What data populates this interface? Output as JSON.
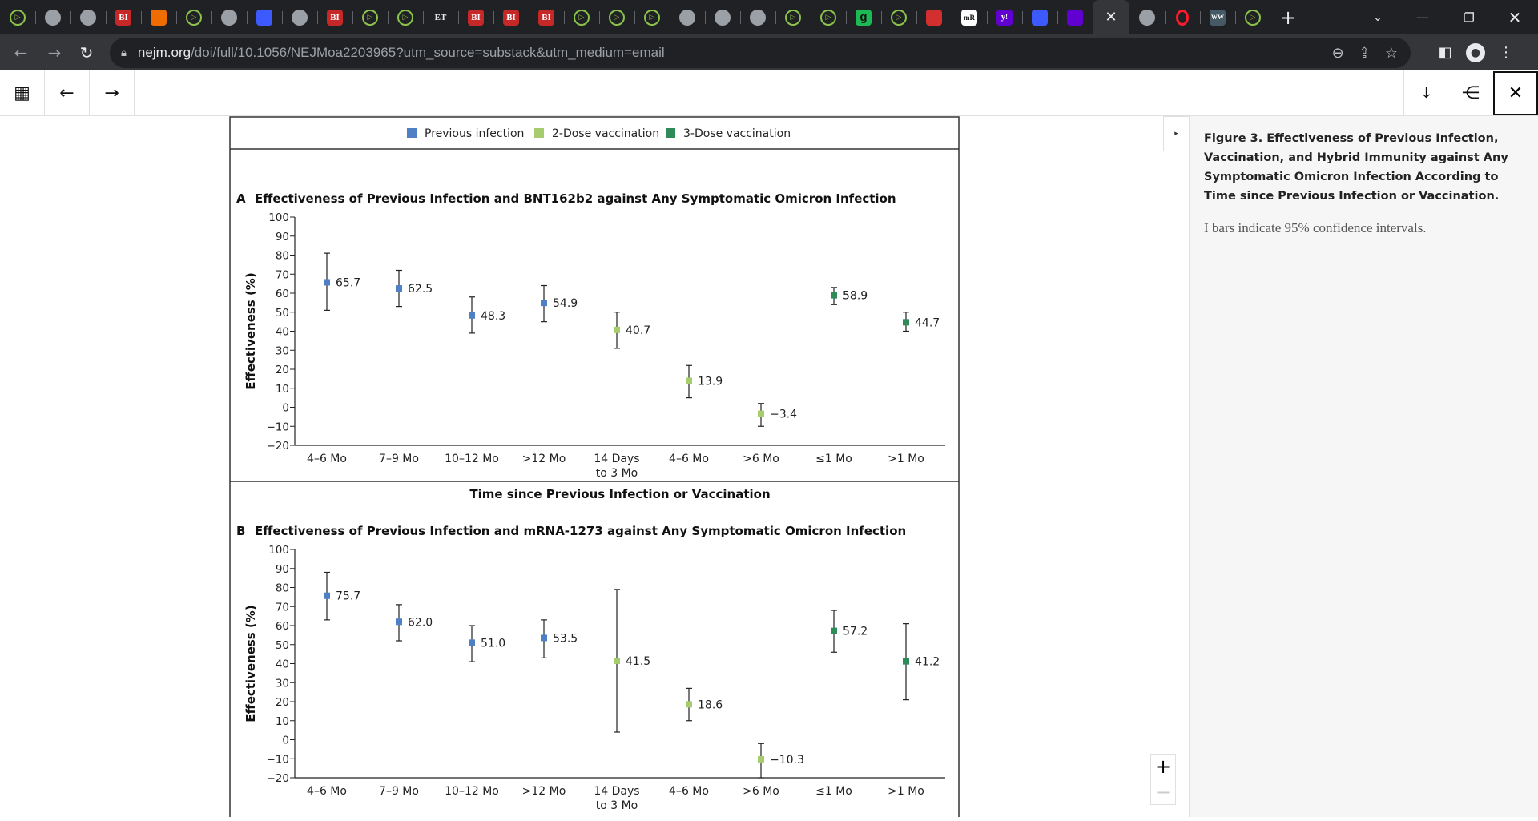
{
  "browser": {
    "tabs": [
      {
        "icon": "play-icon",
        "glyph": "▷",
        "kind": "play"
      },
      {
        "icon": "globe-icon",
        "glyph": "",
        "kind": "globe"
      },
      {
        "icon": "globe-icon",
        "glyph": "",
        "kind": "globe"
      },
      {
        "icon": "bi-icon",
        "glyph": "BI",
        "kind": "bi"
      },
      {
        "icon": "bookmark-icon",
        "glyph": "",
        "kind": "book"
      },
      {
        "icon": "play-icon",
        "glyph": "▷",
        "kind": "play"
      },
      {
        "icon": "globe-icon",
        "glyph": "",
        "kind": "globe"
      },
      {
        "icon": "blue-arrow-icon",
        "glyph": "",
        "kind": "blue"
      },
      {
        "icon": "globe-icon",
        "glyph": "",
        "kind": "globe"
      },
      {
        "icon": "bi-icon",
        "glyph": "BI",
        "kind": "bi"
      },
      {
        "icon": "play-icon",
        "glyph": "▷",
        "kind": "play"
      },
      {
        "icon": "play-icon",
        "glyph": "▷",
        "kind": "play"
      },
      {
        "icon": "et-icon",
        "glyph": "ET",
        "kind": "et"
      },
      {
        "icon": "bi-icon",
        "glyph": "BI",
        "kind": "bi"
      },
      {
        "icon": "bi-icon",
        "glyph": "BI",
        "kind": "bi"
      },
      {
        "icon": "bi-icon",
        "glyph": "BI",
        "kind": "bi"
      },
      {
        "icon": "play-icon",
        "glyph": "▷",
        "kind": "play"
      },
      {
        "icon": "play-icon",
        "glyph": "▷",
        "kind": "play"
      },
      {
        "icon": "play-icon",
        "glyph": "▷",
        "kind": "play"
      },
      {
        "icon": "globe-icon",
        "glyph": "",
        "kind": "globe"
      },
      {
        "icon": "globe-icon",
        "glyph": "",
        "kind": "globe"
      },
      {
        "icon": "globe-icon",
        "glyph": "",
        "kind": "globe"
      },
      {
        "icon": "play-icon",
        "glyph": "▷",
        "kind": "play"
      },
      {
        "icon": "play-icon",
        "glyph": "▷",
        "kind": "play"
      },
      {
        "icon": "g-icon",
        "glyph": "g",
        "kind": "g"
      },
      {
        "icon": "play-icon",
        "glyph": "▷",
        "kind": "play"
      },
      {
        "icon": "red-download-icon",
        "glyph": "",
        "kind": "red"
      },
      {
        "icon": "mr-icon",
        "glyph": "mR",
        "kind": "mr"
      },
      {
        "icon": "yahoo-icon",
        "glyph": "y!",
        "kind": "yahoo"
      },
      {
        "icon": "blue-arrow-icon",
        "glyph": "",
        "kind": "blue"
      },
      {
        "icon": "yahoo-mail-icon",
        "glyph": "",
        "kind": "yahoo"
      }
    ],
    "active_tab_close": "✕",
    "tabs_after": [
      {
        "icon": "globe-icon",
        "glyph": "",
        "kind": "globe"
      },
      {
        "icon": "opera-icon",
        "glyph": "",
        "kind": "opera"
      },
      {
        "icon": "ww-icon",
        "glyph": "WW",
        "kind": "ww"
      },
      {
        "icon": "play-icon",
        "glyph": "▷",
        "kind": "play"
      }
    ],
    "url_host": "nejm.org",
    "url_path": "/doi/full/10.1056/NEJMoa2203965?utm_source=substack&utm_medium=email"
  },
  "figure": {
    "legend": [
      {
        "label": "Previous infection",
        "color": "#4f7fc4"
      },
      {
        "label": "2-Dose vaccination",
        "color": "#a6cc6e"
      },
      {
        "label": "3-Dose vaccination",
        "color": "#2e8b57"
      }
    ],
    "panel_a_title": "Effectiveness of Previous Infection and BNT162b2 against Any Symptomatic Omicron Infection",
    "panel_a_letter": "A",
    "panel_b_title": "Effectiveness of Previous Infection and mRNA-1273 against Any Symptomatic Omicron Infection",
    "panel_b_letter": "B",
    "ylabel": "Effectiveness (%)",
    "xlabel": "Time since Previous Infection or Vaccination"
  },
  "chart_data": [
    {
      "type": "scatter",
      "title": "Effectiveness of Previous Infection and BNT162b2 against Any Symptomatic Omicron Infection",
      "ylabel": "Effectiveness (%)",
      "xlabel": "Time since Previous Infection or Vaccination",
      "ylim": [
        -20,
        100
      ],
      "yticks": [
        "100",
        "90",
        "80",
        "70",
        "60",
        "50",
        "40",
        "30",
        "20",
        "10",
        "0",
        "−10",
        "−20"
      ],
      "categories": [
        "4–6 Mo",
        "7–9 Mo",
        "10–12 Mo",
        ">12 Mo",
        "14 Days\nto 3 Mo",
        "4–6 Mo",
        ">6 Mo",
        "≤1 Mo",
        ">1 Mo"
      ],
      "points": [
        {
          "value": 65.7,
          "label": "65.7",
          "lo": 51,
          "hi": 81,
          "group": 0
        },
        {
          "value": 62.5,
          "label": "62.5",
          "lo": 53,
          "hi": 72,
          "group": 0
        },
        {
          "value": 48.3,
          "label": "48.3",
          "lo": 39,
          "hi": 58,
          "group": 0
        },
        {
          "value": 54.9,
          "label": "54.9",
          "lo": 45,
          "hi": 64,
          "group": 0
        },
        {
          "value": 40.7,
          "label": "40.7",
          "lo": 31,
          "hi": 50,
          "group": 1
        },
        {
          "value": 13.9,
          "label": "13.9",
          "lo": 5,
          "hi": 22,
          "group": 1
        },
        {
          "value": -3.4,
          "label": "−3.4",
          "lo": -10,
          "hi": 2,
          "group": 1
        },
        {
          "value": 58.9,
          "label": "58.9",
          "lo": 54,
          "hi": 63,
          "group": 2
        },
        {
          "value": 44.7,
          "label": "44.7",
          "lo": 40,
          "hi": 50,
          "group": 2
        }
      ]
    },
    {
      "type": "scatter",
      "title": "Effectiveness of Previous Infection and mRNA-1273 against Any Symptomatic Omicron Infection",
      "ylabel": "Effectiveness (%)",
      "xlabel": "Time since Previous Infection or Vaccination",
      "ylim": [
        -20,
        100
      ],
      "yticks": [
        "100",
        "90",
        "80",
        "70",
        "60",
        "50",
        "40",
        "30",
        "20",
        "10",
        "0",
        "−10",
        "−20"
      ],
      "categories": [
        "4–6 Mo",
        "7–9 Mo",
        "10–12 Mo",
        ">12 Mo",
        "14 Days\nto 3 Mo",
        "4–6 Mo",
        ">6 Mo",
        "≤1 Mo",
        ">1 Mo"
      ],
      "points": [
        {
          "value": 75.7,
          "label": "75.7",
          "lo": 63,
          "hi": 88,
          "group": 0
        },
        {
          "value": 62.0,
          "label": "62.0",
          "lo": 52,
          "hi": 71,
          "group": 0
        },
        {
          "value": 51.0,
          "label": "51.0",
          "lo": 41,
          "hi": 60,
          "group": 0
        },
        {
          "value": 53.5,
          "label": "53.5",
          "lo": 43,
          "hi": 63,
          "group": 0
        },
        {
          "value": 41.5,
          "label": "41.5",
          "lo": 4,
          "hi": 79,
          "group": 1
        },
        {
          "value": 18.6,
          "label": "18.6",
          "lo": 10,
          "hi": 27,
          "group": 1
        },
        {
          "value": -10.3,
          "label": "−10.3",
          "lo": -20,
          "hi": -2,
          "group": 1
        },
        {
          "value": 57.2,
          "label": "57.2",
          "lo": 46,
          "hi": 68,
          "group": 2
        },
        {
          "value": 41.2,
          "label": "41.2",
          "lo": 21,
          "hi": 61,
          "group": 2
        }
      ]
    }
  ],
  "caption": {
    "title": "Figure 3. Effectiveness of Previous Infection, Vaccination, and Hybrid Immunity against Any Symptomatic Omicron Infection According to Time since Previous Infection or Vaccination.",
    "body": "I bars indicate 95% confidence intervals."
  }
}
